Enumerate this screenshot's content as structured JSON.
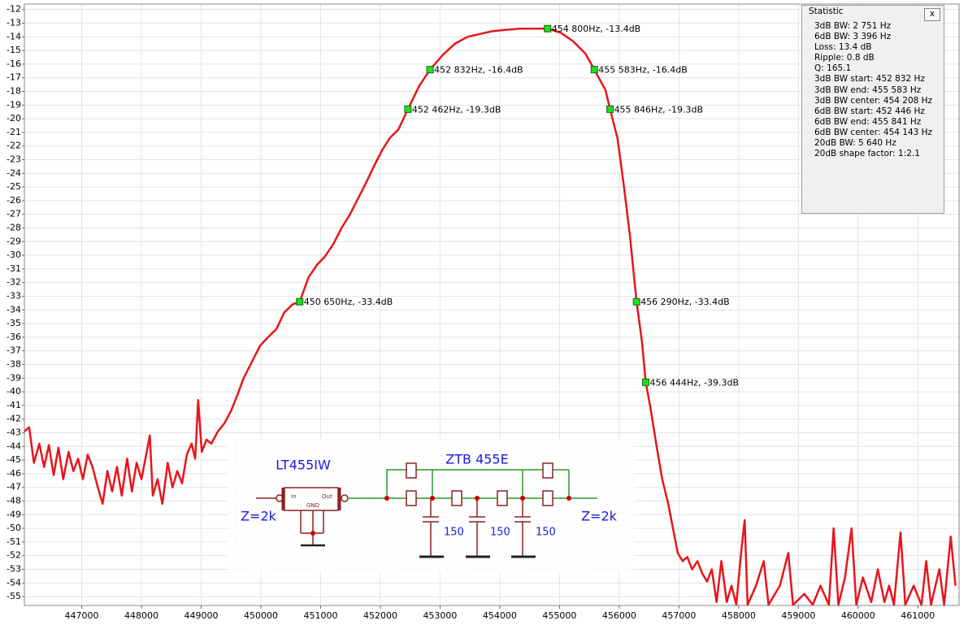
{
  "chart_data": {
    "type": "line",
    "x": [
      446040,
      446120,
      446200,
      446290,
      446370,
      446450,
      446530,
      446610,
      446690,
      446780,
      446860,
      446940,
      447020,
      447100,
      447180,
      447270,
      447350,
      447430,
      447510,
      447590,
      447670,
      447760,
      447840,
      447920,
      448000,
      448080,
      448140,
      448190,
      448270,
      448350,
      448440,
      448520,
      448600,
      448680,
      448760,
      448840,
      448900,
      448950,
      449010,
      449090,
      449170,
      449280,
      449390,
      449500,
      449610,
      449710,
      449850,
      449990,
      450120,
      450260,
      450390,
      450530,
      450650,
      450800,
      450940,
      451070,
      451210,
      451350,
      451480,
      451620,
      451760,
      451890,
      452030,
      452160,
      452300,
      452462,
      452650,
      452832,
      453050,
      453250,
      453460,
      453660,
      453860,
      454070,
      454340,
      454610,
      454800,
      455020,
      455220,
      455430,
      455583,
      455770,
      455846,
      455970,
      456080,
      456180,
      456290,
      456380,
      456444,
      456520,
      456630,
      456720,
      456820,
      456900,
      456980,
      457060,
      457140,
      457220,
      457310,
      457390,
      457470,
      457550,
      457630,
      457710,
      457800,
      457880,
      457960,
      458040,
      458100,
      458150,
      458290,
      458420,
      458500,
      458690,
      458830,
      458910,
      459100,
      459240,
      459370,
      459510,
      459590,
      459670,
      459780,
      459890,
      459970,
      460080,
      460220,
      460330,
      460440,
      460520,
      460600,
      460710,
      460790,
      460930,
      461060,
      461140,
      461220,
      461360,
      461440,
      461550,
      461630
    ],
    "series": [
      {
        "color": "#e8141c",
        "values": [
          -42.9,
          -42.6,
          -45.2,
          -43.8,
          -45.5,
          -43.9,
          -46.1,
          -44.1,
          -46.4,
          -44.4,
          -45.8,
          -44.9,
          -46.4,
          -44.6,
          -45.5,
          -47.0,
          -48.2,
          -45.8,
          -47.3,
          -45.5,
          -47.6,
          -44.9,
          -47.3,
          -45.2,
          -46.4,
          -44.6,
          -43.2,
          -47.6,
          -46.4,
          -48.2,
          -45.2,
          -47.0,
          -45.8,
          -46.7,
          -44.6,
          -43.8,
          -44.9,
          -40.6,
          -44.4,
          -43.5,
          -43.8,
          -42.9,
          -42.3,
          -41.4,
          -40.2,
          -39.0,
          -37.8,
          -36.6,
          -36.0,
          -35.4,
          -34.2,
          -33.6,
          -33.4,
          -31.6,
          -30.7,
          -30.1,
          -29.2,
          -28.0,
          -27.1,
          -25.9,
          -24.7,
          -23.5,
          -22.3,
          -21.4,
          -20.8,
          -19.3,
          -17.6,
          -16.4,
          -15.3,
          -14.5,
          -14.0,
          -13.8,
          -13.6,
          -13.5,
          -13.4,
          -13.4,
          -13.4,
          -13.7,
          -14.3,
          -15.2,
          -16.4,
          -17.9,
          -19.3,
          -21.4,
          -25.0,
          -28.6,
          -33.4,
          -36.3,
          -39.3,
          -41.1,
          -44.1,
          -46.4,
          -48.2,
          -50.0,
          -51.8,
          -52.4,
          -52.1,
          -53.0,
          -52.4,
          -53.3,
          -53.9,
          -53.0,
          -55.4,
          -52.4,
          -55.4,
          -54.2,
          -55.6,
          -51.8,
          -49.4,
          -55.6,
          -54.2,
          -52.4,
          -55.6,
          -54.2,
          -51.8,
          -55.6,
          -54.8,
          -55.6,
          -54.2,
          -55.6,
          -50.0,
          -55.6,
          -53.6,
          -50.0,
          -55.6,
          -53.6,
          -55.4,
          -53.0,
          -55.4,
          -54.2,
          -55.6,
          -50.3,
          -55.6,
          -54.2,
          -55.6,
          -52.4,
          -55.6,
          -53.0,
          -55.6,
          -50.6,
          -54.2
        ]
      }
    ],
    "xlim": [
      446040,
      461690
    ],
    "ylim": [
      -55.65,
      -11.6
    ],
    "xticks": [
      447000,
      448000,
      449000,
      450000,
      451000,
      452000,
      453000,
      454000,
      455000,
      456000,
      457000,
      458000,
      459000,
      460000,
      461000
    ],
    "yticks": [
      -12,
      -13,
      -14,
      -15,
      -16,
      -17,
      -18,
      -19,
      -20,
      -21,
      -22,
      -23,
      -24,
      -25,
      -26,
      -27,
      -28,
      -29,
      -30,
      -31,
      -32,
      -33,
      -34,
      -35,
      -36,
      -37,
      -38,
      -39,
      -40,
      -41,
      -42,
      -43,
      -44,
      -45,
      -46,
      -47,
      -48,
      -49,
      -50,
      -51,
      -52,
      -53,
      -54,
      -55
    ],
    "grid": true,
    "markers": [
      {
        "x": 454800,
        "y": -13.4,
        "label": "454 800Hz, -13.4dB"
      },
      {
        "x": 452832,
        "y": -16.4,
        "label": "452 832Hz, -16.4dB"
      },
      {
        "x": 455583,
        "y": -16.4,
        "label": "455 583Hz, -16.4dB"
      },
      {
        "x": 452462,
        "y": -19.3,
        "label": "452 462Hz, -19.3dB"
      },
      {
        "x": 455846,
        "y": -19.3,
        "label": "455 846Hz, -19.3dB"
      },
      {
        "x": 450650,
        "y": -33.4,
        "label": "450 650Hz, -33.4dB"
      },
      {
        "x": 456290,
        "y": -33.4,
        "label": "456 290Hz, -33.4dB"
      },
      {
        "x": 456444,
        "y": -39.3,
        "label": "456 444Hz, -39.3dB"
      }
    ],
    "marker_color": "#22dd22"
  },
  "statistic_panel": {
    "title": "Statistic",
    "close": "x",
    "lines": [
      "3dB BW: 2 751 Hz",
      "6dB BW: 3 396 Hz",
      "Loss: 13.4 dB",
      "Ripple: 0.8 dB",
      "Q: 165.1",
      "3dB BW start: 452 832 Hz",
      "3dB BW end: 455 583 Hz",
      "3dB BW center: 454 208 Hz",
      "6dB BW start: 452 446 Hz",
      "6dB BW end: 455 841 Hz",
      "6dB BW center: 454 143 Hz",
      "20dB BW: 5 640 Hz",
      "20dB shape factor: 1:2.1"
    ]
  },
  "schematic": {
    "ic": "LT455IW",
    "filter": "ZTB 455E",
    "z_in": "Z=2k",
    "z_out": "Z=2k",
    "pin_in": "In",
    "pin_out": "Out",
    "pin_gnd": "GND",
    "caps": [
      "150",
      "150",
      "150"
    ]
  }
}
